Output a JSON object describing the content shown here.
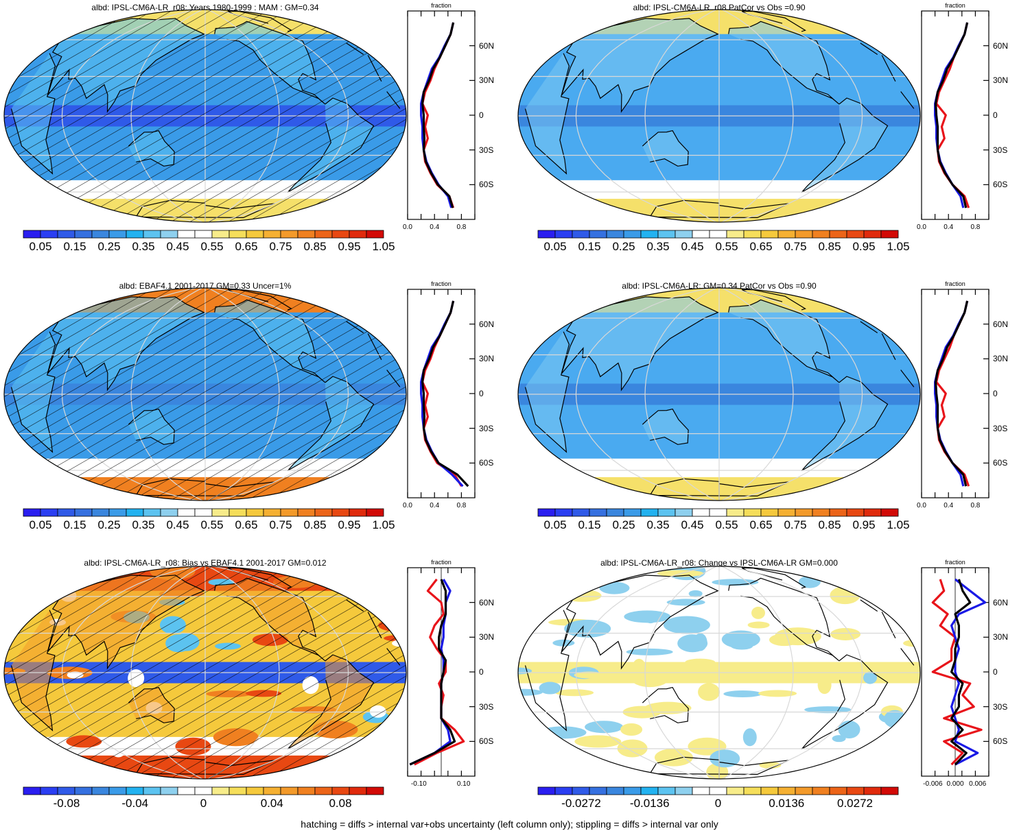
{
  "footer": "hatching = diffs > internal var+obs uncertainty (left column only); stippling = diffs > internal var only",
  "colors": {
    "ocean_blue": "#3a9be8",
    "deep_blue": "#2a5fe0",
    "ice_yellow": "#f5e06a",
    "white": "#ffffff",
    "bias_orange": "#f3a23a",
    "red_line": "#e8141a",
    "blue_line": "#1a1ae6",
    "black_line": "#000000"
  },
  "abs_palette": [
    "#2a1ef0",
    "#2a3ef2",
    "#2f5ae8",
    "#3570e0",
    "#3a86de",
    "#3a9be8",
    "#22b2f0",
    "#5cc3f0",
    "#8ed0ee",
    "#ffffff",
    "#ffffff",
    "#f7ec8a",
    "#f5de5a",
    "#f5c93c",
    "#f5b032",
    "#f39a2a",
    "#f08020",
    "#ec6418",
    "#e84812",
    "#e02a0c",
    "#d20a06"
  ],
  "diff_palette": [
    "#2a1ef0",
    "#2a3ef2",
    "#2f5ae8",
    "#3570e0",
    "#3a86de",
    "#3a9be8",
    "#22b2f0",
    "#5cc3f0",
    "#8ed0ee",
    "#ffffff",
    "#ffffff",
    "#f7ec8a",
    "#f5de5a",
    "#f5c93c",
    "#f5b032",
    "#f39a2a",
    "#f08020",
    "#ec6418",
    "#e84812",
    "#e02a0c",
    "#d20a06"
  ],
  "panels": [
    {
      "title": "albd: IPSL-CM6A-LR_r08: Years 1980-1999 : MAM : GM=0.34",
      "map_style": "abs_model",
      "hatched": true,
      "colorbar_labels": [
        "0.05",
        "0.15",
        "0.25",
        "0.35",
        "0.45",
        "0.55",
        "0.65",
        "0.75",
        "0.85",
        "0.95",
        "1.05"
      ],
      "profile_xticks": [
        "0.0",
        "0.4",
        "0.8"
      ],
      "profile_xlim": [
        0,
        1
      ],
      "profile_title": "fraction",
      "lat_labels": [
        "60N",
        "30N",
        "0",
        "30S",
        "60S"
      ]
    },
    {
      "title": "albd: IPSL-CM6A-LR_r08 PatCor vs Obs =0.90",
      "map_style": "abs_ens",
      "hatched": false,
      "colorbar_labels": [
        "0.05",
        "0.15",
        "0.25",
        "0.35",
        "0.45",
        "0.55",
        "0.65",
        "0.75",
        "0.85",
        "0.95",
        "1.05"
      ],
      "profile_xticks": [
        "0.0",
        "0.4",
        "0.8"
      ],
      "profile_xlim": [
        0,
        1
      ],
      "profile_title": "fraction",
      "lat_labels": [
        "60N",
        "30N",
        "0",
        "30S",
        "60S"
      ]
    },
    {
      "title": "albd: EBAF4.1 2001-2017 GM=0.33 Uncer=1%",
      "map_style": "abs_obs",
      "hatched": true,
      "colorbar_labels": [
        "0.05",
        "0.15",
        "0.25",
        "0.35",
        "0.45",
        "0.55",
        "0.65",
        "0.75",
        "0.85",
        "0.95",
        "1.05"
      ],
      "profile_xticks": [
        "0.0",
        "0.4",
        "0.8"
      ],
      "profile_xlim": [
        0,
        1
      ],
      "profile_title": "fraction",
      "lat_labels": [
        "60N",
        "30N",
        "0",
        "30S",
        "60S"
      ]
    },
    {
      "title": "albd: IPSL-CM6A-LR: GM=0.34 PatCor vs Obs =0.90",
      "map_style": "abs_ens",
      "hatched": false,
      "colorbar_labels": [
        "0.05",
        "0.15",
        "0.25",
        "0.35",
        "0.45",
        "0.55",
        "0.65",
        "0.75",
        "0.85",
        "0.95",
        "1.05"
      ],
      "profile_xticks": [
        "0.0",
        "0.4",
        "0.8"
      ],
      "profile_xlim": [
        0,
        1
      ],
      "profile_title": "fraction",
      "lat_labels": [
        "60N",
        "30N",
        "0",
        "30S",
        "60S"
      ]
    },
    {
      "title": "albd: IPSL-CM6A-LR_r08: Bias vs EBAF4.1 2001-2017 GM=0.012",
      "map_style": "bias",
      "hatched": true,
      "colorbar_labels": [
        "-0.08",
        "-0.04",
        "0",
        "0.04",
        "0.08"
      ],
      "profile_xticks": [
        "-0.10",
        "0.10"
      ],
      "profile_xlim": [
        -0.15,
        0.15
      ],
      "profile_title": "fraction",
      "lat_labels": [
        "60N",
        "30N",
        "0",
        "30S",
        "60S"
      ]
    },
    {
      "title": "albd: IPSL-CM6A-LR_r08: Change vs IPSL-CM6A-LR GM=0.000",
      "map_style": "change",
      "hatched": false,
      "colorbar_labels": [
        "-0.0272",
        "-0.0136",
        "0",
        "0.0136",
        "0.0272"
      ],
      "profile_xticks": [
        "-0.006",
        "0.000",
        "0.006"
      ],
      "profile_xlim": [
        -0.009,
        0.009
      ],
      "profile_title": "fraction",
      "lat_labels": [
        "60N",
        "30N",
        "0",
        "30S",
        "60S"
      ]
    }
  ],
  "chart_data": [
    {
      "type": "line",
      "title": "fraction",
      "x_axis": "fraction",
      "y_axis": "latitude",
      "lat": [
        80,
        70,
        60,
        50,
        40,
        30,
        20,
        10,
        0,
        -10,
        -20,
        -30,
        -40,
        -50,
        -60,
        -70,
        -80
      ],
      "xlim": [
        0,
        1
      ],
      "series": [
        {
          "color": "red",
          "values": [
            0.68,
            0.64,
            0.56,
            0.48,
            0.4,
            0.34,
            0.26,
            0.22,
            0.3,
            0.26,
            0.3,
            0.24,
            0.26,
            0.34,
            0.44,
            0.62,
            0.68
          ]
        },
        {
          "color": "blue",
          "values": [
            0.68,
            0.64,
            0.55,
            0.47,
            0.36,
            0.3,
            0.24,
            0.2,
            0.2,
            0.22,
            0.22,
            0.24,
            0.28,
            0.36,
            0.46,
            0.6,
            0.65
          ]
        },
        {
          "color": "black",
          "values": [
            0.68,
            0.64,
            0.56,
            0.48,
            0.38,
            0.32,
            0.24,
            0.22,
            0.24,
            0.24,
            0.25,
            0.24,
            0.27,
            0.35,
            0.45,
            0.62,
            0.67
          ]
        }
      ]
    },
    {
      "type": "line",
      "title": "fraction",
      "x_axis": "fraction",
      "y_axis": "latitude",
      "lat": [
        80,
        70,
        60,
        50,
        40,
        30,
        20,
        10,
        0,
        -10,
        -20,
        -30,
        -40,
        -50,
        -60,
        -70,
        -80
      ],
      "xlim": [
        0,
        1
      ],
      "series": [
        {
          "color": "red",
          "values": [
            0.68,
            0.64,
            0.56,
            0.48,
            0.42,
            0.34,
            0.26,
            0.22,
            0.36,
            0.3,
            0.34,
            0.24,
            0.26,
            0.34,
            0.46,
            0.64,
            0.7
          ]
        },
        {
          "color": "blue",
          "values": [
            0.68,
            0.64,
            0.55,
            0.47,
            0.36,
            0.3,
            0.24,
            0.2,
            0.2,
            0.22,
            0.22,
            0.24,
            0.28,
            0.36,
            0.46,
            0.58,
            0.62
          ]
        },
        {
          "color": "black",
          "values": [
            0.68,
            0.64,
            0.56,
            0.48,
            0.38,
            0.32,
            0.24,
            0.21,
            0.22,
            0.24,
            0.24,
            0.24,
            0.27,
            0.35,
            0.46,
            0.62,
            0.66
          ]
        }
      ]
    },
    {
      "type": "line",
      "title": "fraction",
      "x_axis": "fraction",
      "y_axis": "latitude",
      "lat": [
        80,
        70,
        60,
        50,
        40,
        30,
        20,
        10,
        0,
        -10,
        -20,
        -30,
        -40,
        -50,
        -60,
        -70,
        -80
      ],
      "xlim": [
        0,
        1
      ],
      "series": [
        {
          "color": "red",
          "values": [
            0.68,
            0.64,
            0.56,
            0.48,
            0.4,
            0.34,
            0.26,
            0.22,
            0.3,
            0.26,
            0.3,
            0.24,
            0.26,
            0.34,
            0.44,
            0.7,
            0.8
          ]
        },
        {
          "color": "blue",
          "values": [
            0.68,
            0.64,
            0.55,
            0.47,
            0.36,
            0.3,
            0.24,
            0.2,
            0.2,
            0.22,
            0.22,
            0.24,
            0.28,
            0.36,
            0.46,
            0.66,
            0.82
          ]
        },
        {
          "color": "black",
          "values": [
            0.68,
            0.64,
            0.56,
            0.48,
            0.38,
            0.32,
            0.24,
            0.22,
            0.24,
            0.24,
            0.25,
            0.24,
            0.27,
            0.35,
            0.46,
            0.74,
            0.9
          ]
        }
      ]
    },
    {
      "type": "line",
      "title": "fraction",
      "x_axis": "fraction",
      "y_axis": "latitude",
      "lat": [
        80,
        70,
        60,
        50,
        40,
        30,
        20,
        10,
        0,
        -10,
        -20,
        -30,
        -40,
        -50,
        -60,
        -70,
        -80
      ],
      "xlim": [
        0,
        1
      ],
      "series": [
        {
          "color": "red",
          "values": [
            0.68,
            0.64,
            0.56,
            0.48,
            0.42,
            0.34,
            0.26,
            0.22,
            0.36,
            0.3,
            0.34,
            0.24,
            0.26,
            0.34,
            0.46,
            0.64,
            0.7
          ]
        },
        {
          "color": "blue",
          "values": [
            0.68,
            0.64,
            0.55,
            0.47,
            0.36,
            0.3,
            0.24,
            0.2,
            0.2,
            0.22,
            0.22,
            0.24,
            0.28,
            0.36,
            0.46,
            0.58,
            0.62
          ]
        },
        {
          "color": "black",
          "values": [
            0.68,
            0.64,
            0.56,
            0.48,
            0.38,
            0.32,
            0.24,
            0.21,
            0.22,
            0.24,
            0.24,
            0.24,
            0.27,
            0.35,
            0.46,
            0.62,
            0.66
          ]
        }
      ]
    },
    {
      "type": "line",
      "title": "fraction",
      "x_axis": "fraction",
      "y_axis": "latitude",
      "lat": [
        80,
        70,
        60,
        50,
        40,
        30,
        20,
        10,
        0,
        -10,
        -20,
        -30,
        -40,
        -50,
        -60,
        -70,
        -80
      ],
      "xlim": [
        -0.15,
        0.15
      ],
      "series": [
        {
          "color": "red",
          "values": [
            -0.02,
            -0.06,
            0.0,
            0.01,
            -0.03,
            -0.05,
            -0.02,
            0.02,
            0.02,
            -0.01,
            0.01,
            0.0,
            0.0,
            0.06,
            0.1,
            -0.02,
            -0.12
          ]
        },
        {
          "color": "blue",
          "values": [
            0.01,
            0.04,
            0.02,
            0.02,
            0.01,
            0.01,
            0.0,
            0.01,
            0.01,
            0.0,
            0.0,
            0.0,
            0.0,
            0.03,
            0.04,
            -0.03,
            -0.14
          ]
        },
        {
          "color": "black",
          "values": [
            0.0,
            0.02,
            0.02,
            0.02,
            0.0,
            -0.01,
            -0.01,
            0.02,
            0.01,
            0.0,
            0.0,
            0.0,
            0.0,
            0.04,
            0.06,
            -0.03,
            -0.14
          ]
        }
      ]
    },
    {
      "type": "line",
      "title": "fraction",
      "x_axis": "fraction",
      "y_axis": "latitude",
      "lat": [
        80,
        70,
        60,
        50,
        40,
        30,
        20,
        10,
        0,
        -10,
        -20,
        -30,
        -40,
        -50,
        -60,
        -70,
        -80
      ],
      "xlim": [
        -0.009,
        0.009
      ],
      "series": [
        {
          "color": "red",
          "values": [
            -0.004,
            -0.003,
            -0.006,
            -0.002,
            -0.004,
            0.0,
            -0.001,
            -0.001,
            -0.006,
            0.004,
            0.002,
            0.005,
            -0.003,
            0.007,
            -0.003,
            0.002,
            -0.001
          ]
        },
        {
          "color": "blue",
          "values": [
            0.0,
            0.004,
            0.008,
            0.001,
            -0.001,
            0.0,
            0.001,
            0.0,
            0.0,
            0.001,
            0.0,
            -0.001,
            0.0,
            0.001,
            0.0,
            0.006,
            0.0
          ]
        },
        {
          "color": "black",
          "values": [
            0.001,
            0.002,
            0.004,
            0.0,
            0.001,
            0.001,
            0.0,
            0.0,
            -0.001,
            0.002,
            0.001,
            0.001,
            -0.001,
            0.002,
            -0.001,
            0.003,
            0.0
          ]
        }
      ]
    }
  ]
}
